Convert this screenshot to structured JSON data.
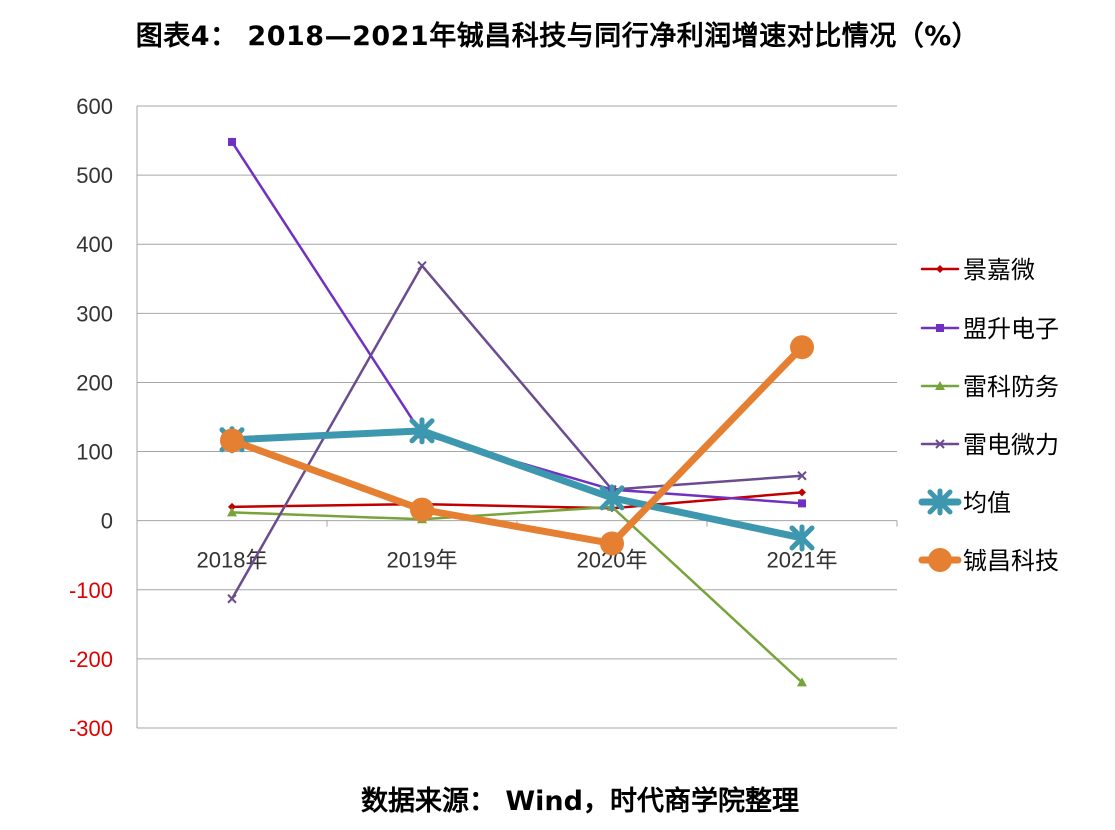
{
  "title": "图表4： 2018—2021年铖昌科技与同行净利润增速对比情况（%）",
  "source": "数据来源： Wind，时代商学院整理",
  "chart_data": {
    "type": "line",
    "categories": [
      "2018年",
      "2019年",
      "2020年",
      "2021年"
    ],
    "ylim": [
      -300,
      600
    ],
    "yticks": [
      600,
      500,
      400,
      300,
      200,
      100,
      0,
      -100,
      -200,
      -300
    ],
    "negative_tick_color": "#e00000",
    "grid": true,
    "legend_position": "right",
    "series": [
      {
        "name": "景嘉微",
        "values": [
          20,
          24,
          18,
          41
        ],
        "color": "#c00000",
        "marker": "diamond",
        "width": 2.5,
        "size": 4
      },
      {
        "name": "盟升电子",
        "values": [
          548,
          125,
          45,
          25
        ],
        "color": "#7030c0",
        "marker": "square",
        "width": 2.5,
        "size": 4
      },
      {
        "name": "雷科防务",
        "values": [
          12,
          2,
          20,
          -234
        ],
        "color": "#77a33b",
        "marker": "triangle",
        "width": 2.5,
        "size": 5
      },
      {
        "name": "雷电微力",
        "values": [
          -113,
          369,
          45,
          65
        ],
        "color": "#6b4c8f",
        "marker": "x",
        "width": 2.5,
        "size": 4
      },
      {
        "name": "均值",
        "values": [
          117,
          130,
          33,
          -25
        ],
        "color": "#3d97ae",
        "marker": "star",
        "width": 7,
        "size": 10
      },
      {
        "name": "铖昌科技",
        "values": [
          116,
          16,
          -33,
          251
        ],
        "color": "#e57f32",
        "marker": "circle",
        "width": 7,
        "size": 12
      }
    ]
  }
}
